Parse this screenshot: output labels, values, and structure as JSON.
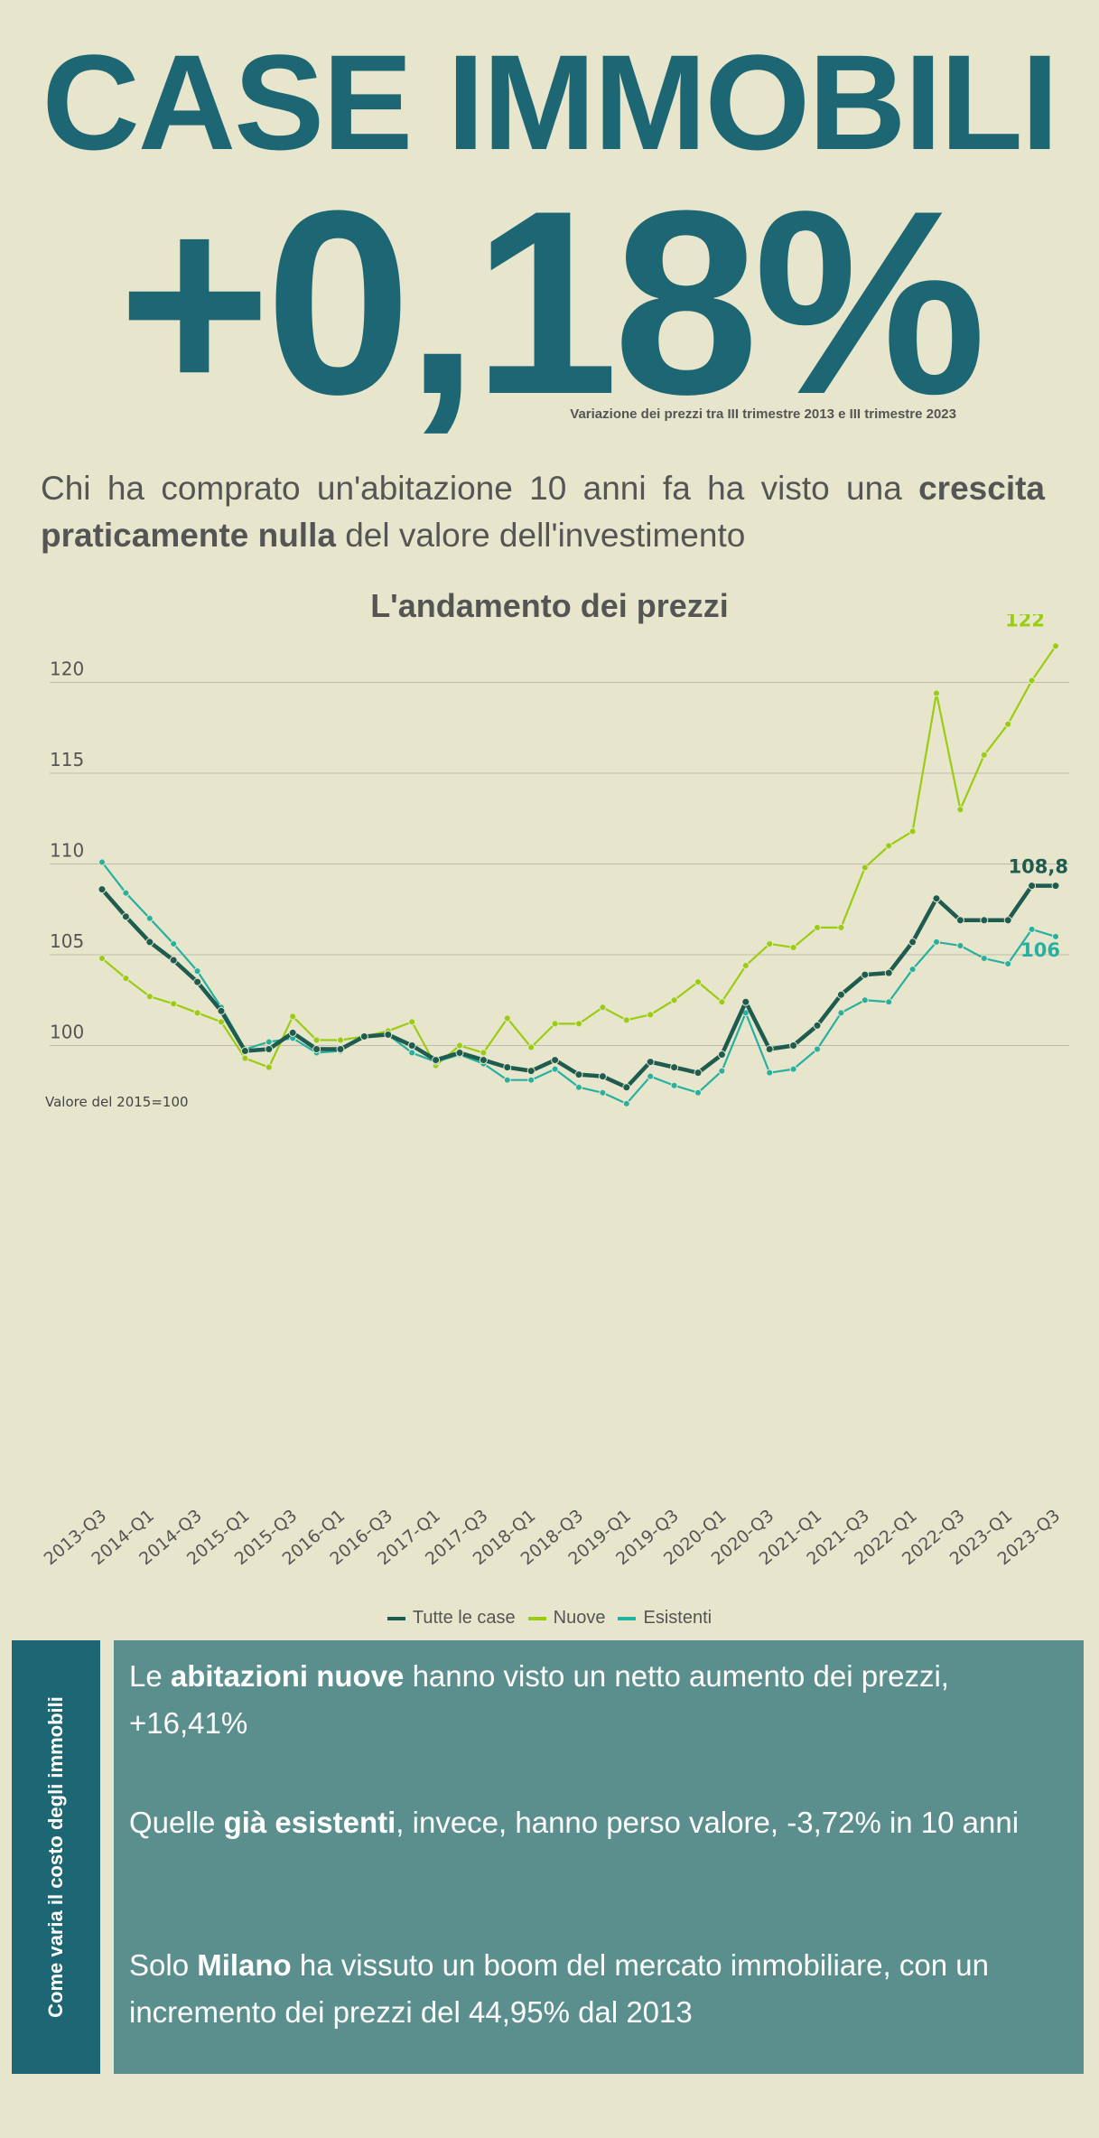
{
  "header": {
    "title": "CASE IMMOBILI",
    "headline_value": "+0,18%",
    "headline_note": "Variazione dei prezzi tra III trimestre 2013 e III trimestre 2023"
  },
  "intro": {
    "part1": "Chi ha comprato un'abitazione 10 anni fa ha visto una ",
    "bold": "crescita praticamente nulla",
    "part2": " del valore dell'investimento"
  },
  "colors": {
    "background": "#e7e6cc",
    "title": "#1d6674",
    "tutte": "#1e5c4f",
    "nuove": "#9acd12",
    "esistenti": "#26b0a0",
    "box": "#5a8f8e"
  },
  "chart_data": {
    "type": "line",
    "title": "L'andamento dei prezzi",
    "note": "Valore del 2015=100",
    "ylim": [
      96,
      123
    ],
    "yticks": [
      100,
      105,
      110,
      115,
      120
    ],
    "grid": true,
    "legend_position": "bottom",
    "x": [
      "2013-Q3",
      "2013-Q4",
      "2014-Q1",
      "2014-Q2",
      "2014-Q3",
      "2014-Q4",
      "2015-Q1",
      "2015-Q2",
      "2015-Q3",
      "2015-Q4",
      "2016-Q1",
      "2016-Q2",
      "2016-Q3",
      "2016-Q4",
      "2017-Q1",
      "2017-Q2",
      "2017-Q3",
      "2017-Q4",
      "2018-Q1",
      "2018-Q2",
      "2018-Q3",
      "2018-Q4",
      "2019-Q1",
      "2019-Q2",
      "2019-Q3",
      "2019-Q4",
      "2020-Q1",
      "2020-Q2",
      "2020-Q3",
      "2020-Q4",
      "2021-Q1",
      "2021-Q2",
      "2021-Q3",
      "2021-Q4",
      "2022-Q1",
      "2022-Q2",
      "2022-Q3",
      "2022-Q4",
      "2023-Q1",
      "2023-Q2",
      "2023-Q3"
    ],
    "xtick_labels": [
      "2013-Q3",
      "2014-Q1",
      "2014-Q3",
      "2015-Q1",
      "2015-Q3",
      "2016-Q1",
      "2016-Q3",
      "2017-Q1",
      "2017-Q3",
      "2018-Q1",
      "2018-Q3",
      "2019-Q1",
      "2019-Q3",
      "2020-Q1",
      "2020-Q3",
      "2021-Q1",
      "2021-Q3",
      "2022-Q1",
      "2022-Q3",
      "2023-Q1",
      "2023-Q3"
    ],
    "series": [
      {
        "name": "Tutte le case",
        "color": "#1e5c4f",
        "end_label": "108,8",
        "values": [
          108.6,
          107.1,
          105.7,
          104.7,
          103.5,
          101.9,
          99.7,
          99.8,
          100.7,
          99.8,
          99.8,
          100.5,
          100.6,
          100.0,
          99.2,
          99.6,
          99.2,
          98.8,
          98.6,
          99.2,
          98.4,
          98.3,
          97.7,
          99.1,
          98.8,
          98.5,
          99.5,
          102.4,
          99.8,
          100.0,
          101.1,
          102.8,
          103.9,
          104.0,
          105.7,
          108.1,
          106.9,
          106.9,
          106.9,
          108.8,
          108.8
        ]
      },
      {
        "name": "Nuove",
        "color": "#9acd12",
        "end_label": "122",
        "values": [
          104.8,
          103.7,
          102.7,
          102.3,
          101.8,
          101.3,
          99.3,
          98.8,
          101.6,
          100.3,
          100.3,
          100.5,
          100.8,
          101.3,
          98.9,
          100.0,
          99.6,
          101.5,
          99.9,
          101.2,
          101.2,
          102.1,
          101.4,
          101.7,
          102.5,
          103.5,
          102.4,
          104.4,
          105.6,
          105.4,
          106.5,
          106.5,
          109.8,
          111.0,
          111.8,
          119.4,
          113.0,
          116.0,
          117.7,
          120.1,
          122.0
        ]
      },
      {
        "name": "Esistenti",
        "color": "#26b0a0",
        "end_label": "106",
        "values": [
          110.1,
          108.4,
          107.0,
          105.6,
          104.1,
          102.1,
          99.8,
          100.2,
          100.4,
          99.6,
          99.7,
          100.5,
          100.6,
          99.6,
          99.1,
          99.5,
          99.0,
          98.1,
          98.1,
          98.7,
          97.7,
          97.4,
          96.8,
          98.3,
          97.8,
          97.4,
          98.6,
          101.8,
          98.5,
          98.7,
          99.8,
          101.8,
          102.5,
          102.4,
          104.2,
          105.7,
          105.5,
          104.8,
          104.5,
          106.4,
          106.0
        ]
      }
    ]
  },
  "side_label": "Come varia il costo degli immobili",
  "facts": [
    {
      "pre": "Le ",
      "bold": "abitazioni nuove",
      "post": " hanno visto un netto aumento dei prezzi, +16,41%"
    },
    {
      "pre": "Quelle ",
      "bold": "già esistenti",
      "post": ", invece, hanno perso valore, -3,72% in 10 anni"
    },
    {
      "pre": "Solo ",
      "bold": "Milano",
      "post": " ha vissuto un boom del mercato immobiliare, con un incremento dei prezzi del 44,95% dal 2013"
    }
  ]
}
